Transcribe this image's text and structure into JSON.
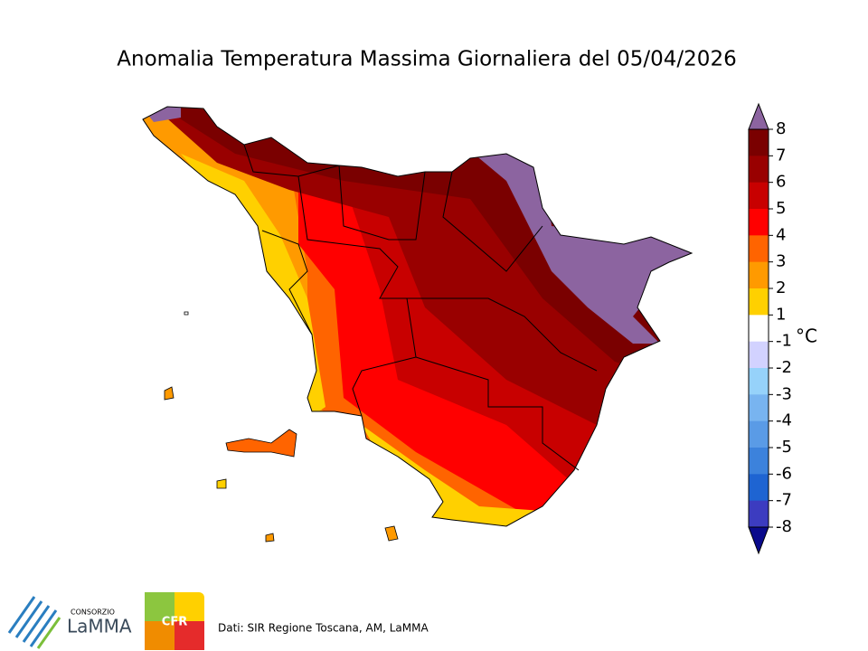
{
  "title": "Anomalia Temperatura Massima Giornaliera del 05/04/2026",
  "colorbar": {
    "unit": "°C",
    "ticks": [
      8,
      7,
      6,
      5,
      4,
      3,
      2,
      1,
      -1,
      -2,
      -3,
      -4,
      -5,
      -6,
      -7,
      -8
    ],
    "colors": [
      "#7a0000",
      "#990000",
      "#c80000",
      "#ff0000",
      "#ff6400",
      "#ff9a00",
      "#ffd000",
      "#ffffff",
      "#d2d2ff",
      "#96d2fa",
      "#78b4f0",
      "#5a9be6",
      "#3c82dc",
      "#1e64d2",
      "#3c3cc0"
    ],
    "over_color": "#8c64a0",
    "under_color": "#0a0a8c"
  },
  "source": "Dati: SIR Regione Toscana, AM, LaMMA",
  "logos": {
    "lamma_top": "CONSORZIO",
    "lamma": "LaMMA",
    "cfr": "CFR"
  }
}
